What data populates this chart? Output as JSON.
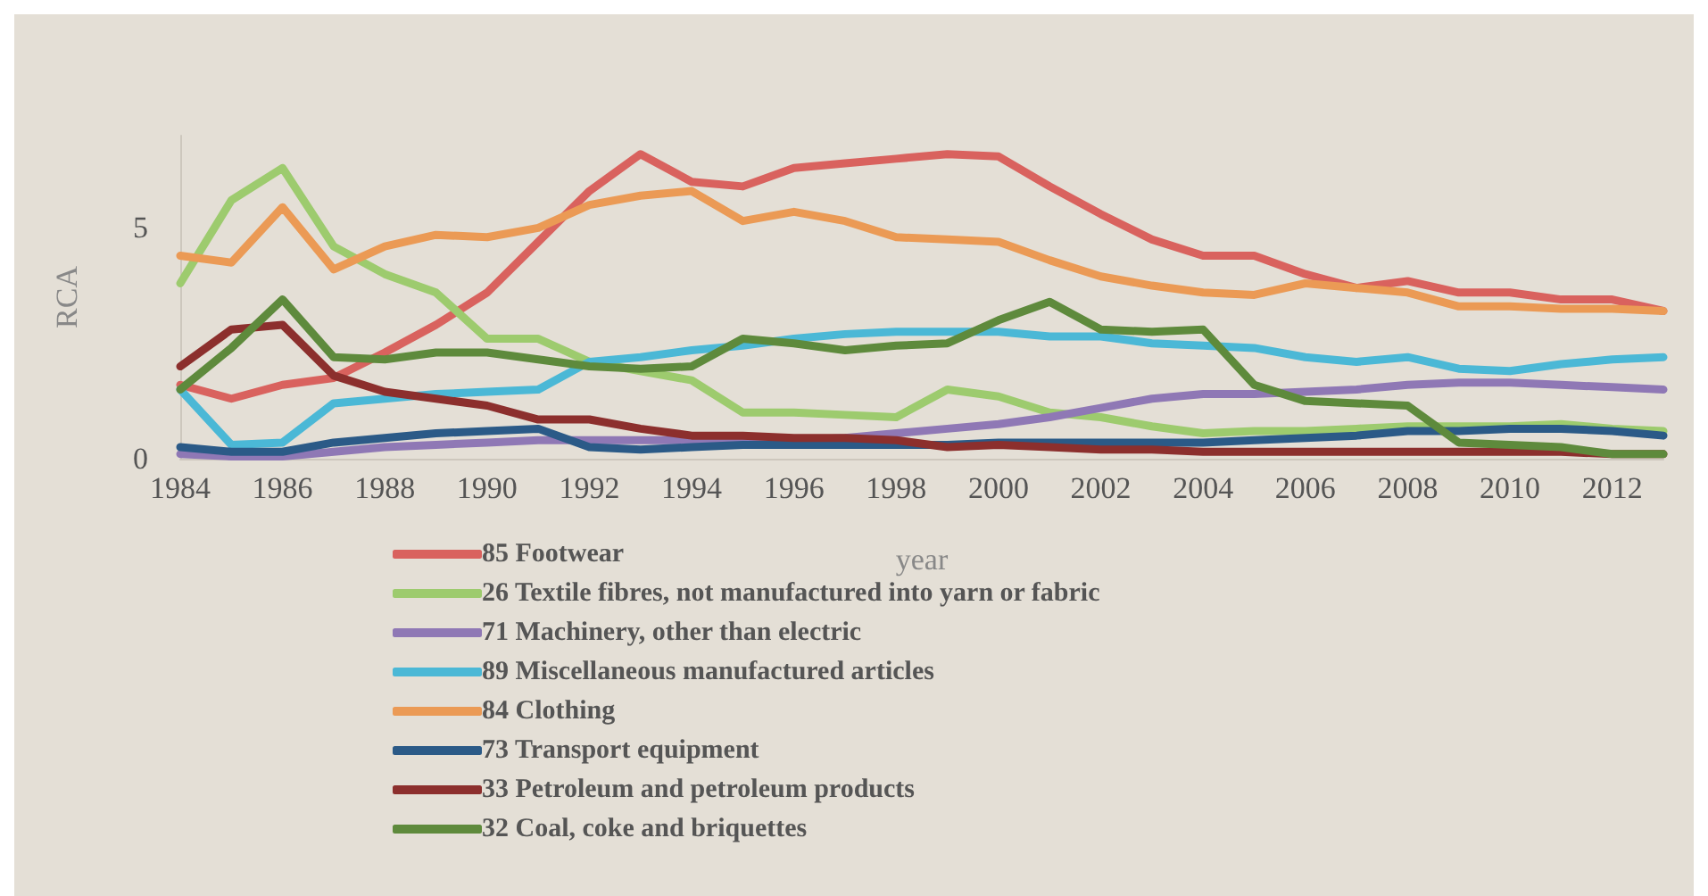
{
  "chart_data": {
    "type": "line",
    "xlabel": "year",
    "ylabel": "RCA",
    "x": [
      1984,
      1985,
      1986,
      1987,
      1988,
      1989,
      1990,
      1991,
      1992,
      1993,
      1994,
      1995,
      1996,
      1997,
      1998,
      1999,
      2000,
      2001,
      2002,
      2003,
      2004,
      2005,
      2006,
      2007,
      2008,
      2009,
      2010,
      2011,
      2012,
      2013
    ],
    "xlim": [
      1984,
      2013
    ],
    "xticks": [
      1984,
      1986,
      1988,
      1990,
      1992,
      1994,
      1996,
      1998,
      2000,
      2002,
      2004,
      2006,
      2008,
      2010,
      2012
    ],
    "ylim": [
      0,
      7
    ],
    "yticks": [
      0,
      5
    ],
    "grid": false,
    "legend": "bottom",
    "marker": "none",
    "line_style": "solid",
    "series": [
      {
        "name": "85 Footwear",
        "color": "#d9625e",
        "values": [
          1.6,
          1.3,
          1.6,
          1.75,
          2.3,
          2.9,
          3.6,
          4.7,
          5.8,
          6.6,
          6.0,
          5.9,
          6.3,
          6.4,
          6.5,
          6.6,
          6.55,
          5.9,
          5.3,
          4.75,
          4.4,
          4.4,
          4.0,
          3.7,
          3.85,
          3.6,
          3.6,
          3.45,
          3.45,
          3.2
        ]
      },
      {
        "name": "26 Textile fibres, not manufactured into yarn or fabric",
        "color": "#9dcb6e",
        "values": [
          3.8,
          5.6,
          6.3,
          4.6,
          4.0,
          3.6,
          2.6,
          2.6,
          2.1,
          1.9,
          1.7,
          1.0,
          1.0,
          0.95,
          0.9,
          1.5,
          1.35,
          1.0,
          0.9,
          0.7,
          0.55,
          0.6,
          0.6,
          0.65,
          0.7,
          0.7,
          0.7,
          0.75,
          0.65,
          0.6
        ]
      },
      {
        "name": "71 Machinery, other than electric",
        "color": "#8f78b5",
        "values": [
          0.1,
          0.05,
          0.05,
          0.15,
          0.25,
          0.3,
          0.35,
          0.4,
          0.4,
          0.4,
          0.4,
          0.4,
          0.4,
          0.45,
          0.55,
          0.65,
          0.75,
          0.9,
          1.1,
          1.3,
          1.4,
          1.4,
          1.45,
          1.5,
          1.6,
          1.65,
          1.65,
          1.6,
          1.55,
          1.5
        ]
      },
      {
        "name": "89 Miscellaneous manufactured articles",
        "color": "#4bb8d6",
        "values": [
          1.5,
          0.3,
          0.35,
          1.2,
          1.3,
          1.4,
          1.45,
          1.5,
          2.1,
          2.2,
          2.35,
          2.45,
          2.6,
          2.7,
          2.75,
          2.75,
          2.75,
          2.65,
          2.65,
          2.5,
          2.45,
          2.4,
          2.2,
          2.1,
          2.2,
          1.95,
          1.9,
          2.05,
          2.15,
          2.2
        ]
      },
      {
        "name": "84 Clothing",
        "color": "#eb9a55",
        "values": [
          4.4,
          4.25,
          5.45,
          4.1,
          4.6,
          4.85,
          4.8,
          5.0,
          5.5,
          5.7,
          5.8,
          5.15,
          5.35,
          5.15,
          4.8,
          4.75,
          4.7,
          4.3,
          3.95,
          3.75,
          3.6,
          3.55,
          3.8,
          3.7,
          3.6,
          3.3,
          3.3,
          3.25,
          3.25,
          3.2
        ]
      },
      {
        "name": "73 Transport equipment",
        "color": "#2b5a87",
        "values": [
          0.25,
          0.15,
          0.15,
          0.35,
          0.45,
          0.55,
          0.6,
          0.65,
          0.25,
          0.2,
          0.25,
          0.3,
          0.3,
          0.3,
          0.3,
          0.3,
          0.35,
          0.35,
          0.35,
          0.35,
          0.35,
          0.4,
          0.45,
          0.5,
          0.6,
          0.6,
          0.65,
          0.65,
          0.6,
          0.5
        ]
      },
      {
        "name": "33 Petroleum and petroleum products",
        "color": "#8c2f2d",
        "values": [
          2.0,
          2.8,
          2.9,
          1.8,
          1.45,
          1.3,
          1.15,
          0.85,
          0.85,
          0.65,
          0.5,
          0.5,
          0.45,
          0.45,
          0.4,
          0.25,
          0.3,
          0.25,
          0.2,
          0.2,
          0.15,
          0.15,
          0.15,
          0.15,
          0.15,
          0.15,
          0.15,
          0.15,
          0.1,
          0.1
        ]
      },
      {
        "name": "32 Coal, coke and briquettes",
        "color": "#5e8a3c",
        "values": [
          1.5,
          2.4,
          3.45,
          2.2,
          2.15,
          2.3,
          2.3,
          2.15,
          2.0,
          1.95,
          2.0,
          2.6,
          2.5,
          2.35,
          2.45,
          2.5,
          3.0,
          3.4,
          2.8,
          2.75,
          2.8,
          1.6,
          1.25,
          1.2,
          1.15,
          0.35,
          0.3,
          0.25,
          0.1,
          0.1
        ]
      }
    ]
  }
}
